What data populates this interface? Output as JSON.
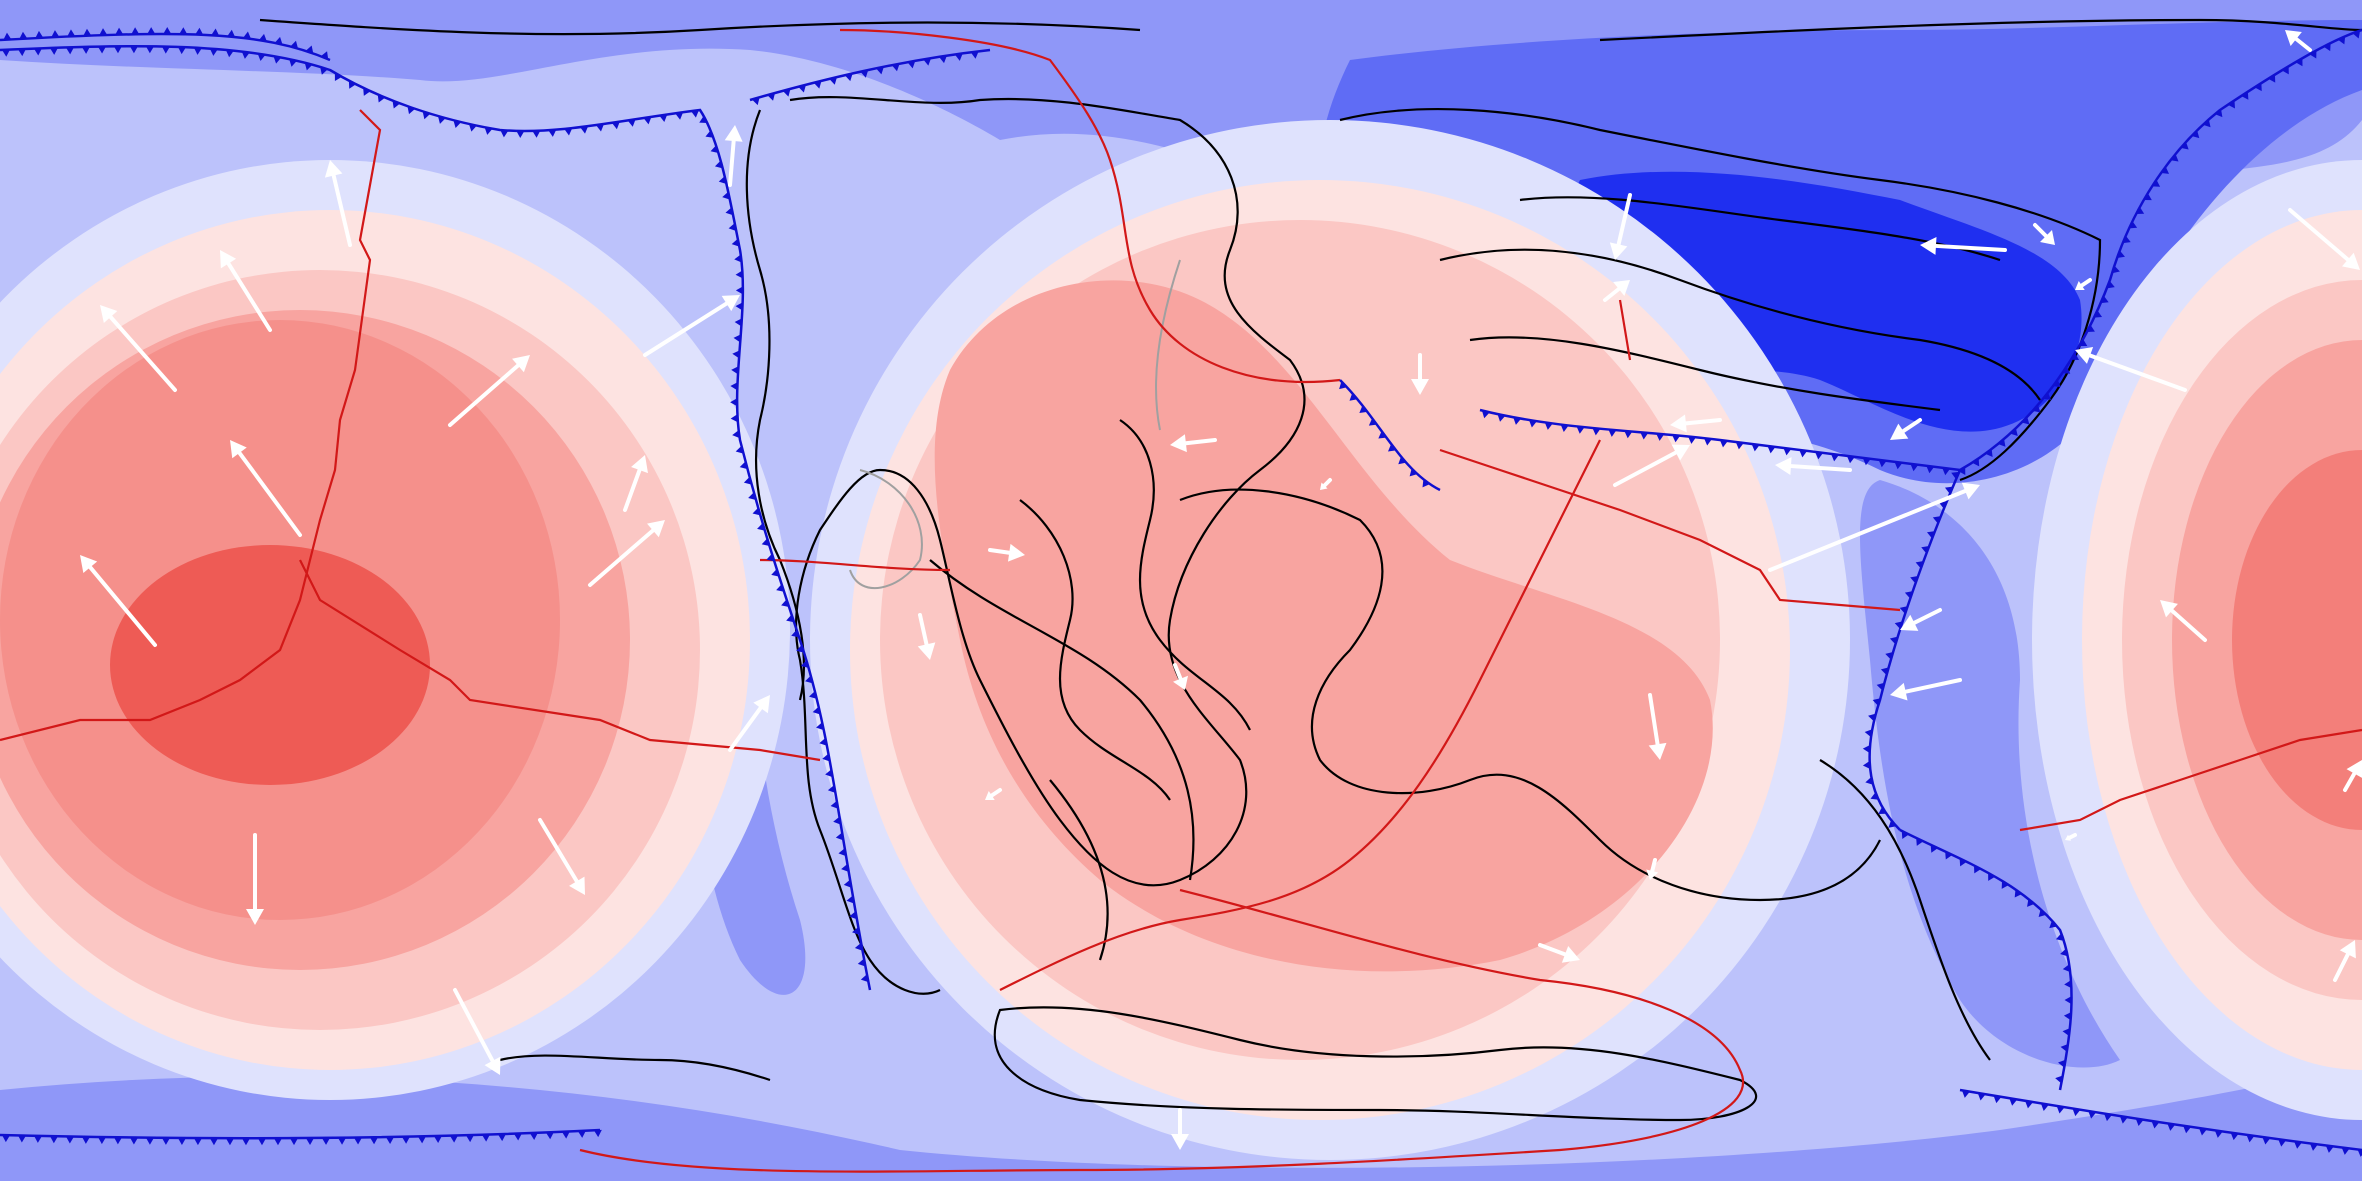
{
  "map": {
    "projection": "equirectangular",
    "colors": {
      "deep_blue": "#1f2ff0",
      "blue": "#5f6cf5",
      "mid_blue": "#8f97f8",
      "light_blue": "#bcc2fb",
      "pale_blue": "#dfe2fd",
      "pale_red": "#fde3e1",
      "light_red": "#fbc7c4",
      "mid_red": "#f8a4a0",
      "red": "#f37f7a",
      "deep_red": "#ee5b55",
      "coastline": "#000000",
      "ridge": "#d21818",
      "subduction": "#1010d0",
      "arrow": "#ffffff",
      "grey_boundary": "#a0a0a0"
    },
    "features": [
      "velocity-arrows",
      "subduction-zones",
      "ridges",
      "coastlines",
      "dynamic-topography-field"
    ]
  }
}
